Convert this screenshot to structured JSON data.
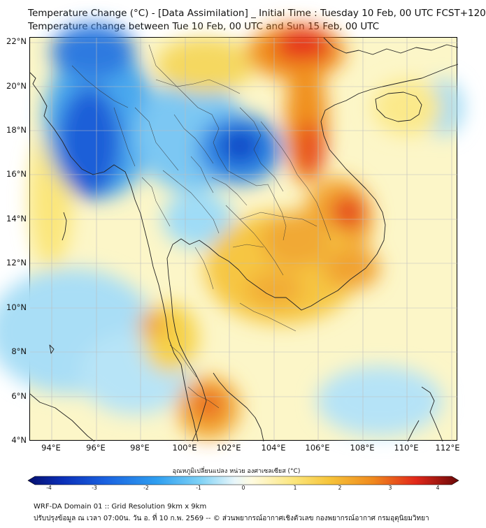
{
  "title_line1": "Temperature Change (°C) - [Data Assimilation] _ Initial Time : Tuesday 10 Feb, 00 UTC FCST+120",
  "title_line2": "Temperature change between Tue 10 Feb, 00 UTC and Sun 15 Feb, 00 UTC",
  "lat_labels": [
    "22°N",
    "20°N",
    "18°N",
    "16°N",
    "14°N",
    "12°N",
    "10°N",
    "8°N",
    "6°N",
    "4°N"
  ],
  "lon_labels": [
    "94°E",
    "96°E",
    "98°E",
    "100°E",
    "102°E",
    "104°E",
    "106°E",
    "108°E",
    "110°E",
    "112°E"
  ],
  "colorbar": {
    "label": "อุณหภูมิเปลี่ยนแปลง หน่วย องศาเซลเซียส (°C)",
    "ticks": [
      "-4",
      "-3",
      "-2",
      "-1",
      "0",
      "1",
      "2",
      "3",
      "4"
    ],
    "min": -4,
    "max": 4
  },
  "footer_line1": "WRF-DA Domain 01 :: Grid Resolution 9km x 9km",
  "footer_line2": "ปรับปรุงข้อมูล ณ เวลา 07:00น. วัน อ. ที่ 10 ก.พ. 2569 -- © ส่วนพยากรณ์อากาศเชิงตัวเลข กองพยากรณ์อากาศ กรมอุตุนิยมวิทยา",
  "colors": {
    "cold_strong": "#0a3ccc",
    "cold": "#3aa0ef",
    "cool": "#9fdcf7",
    "neutral": "#fcf6c8",
    "warm": "#f6d044",
    "hot": "#f08e1e",
    "very_hot": "#e6321a"
  }
}
